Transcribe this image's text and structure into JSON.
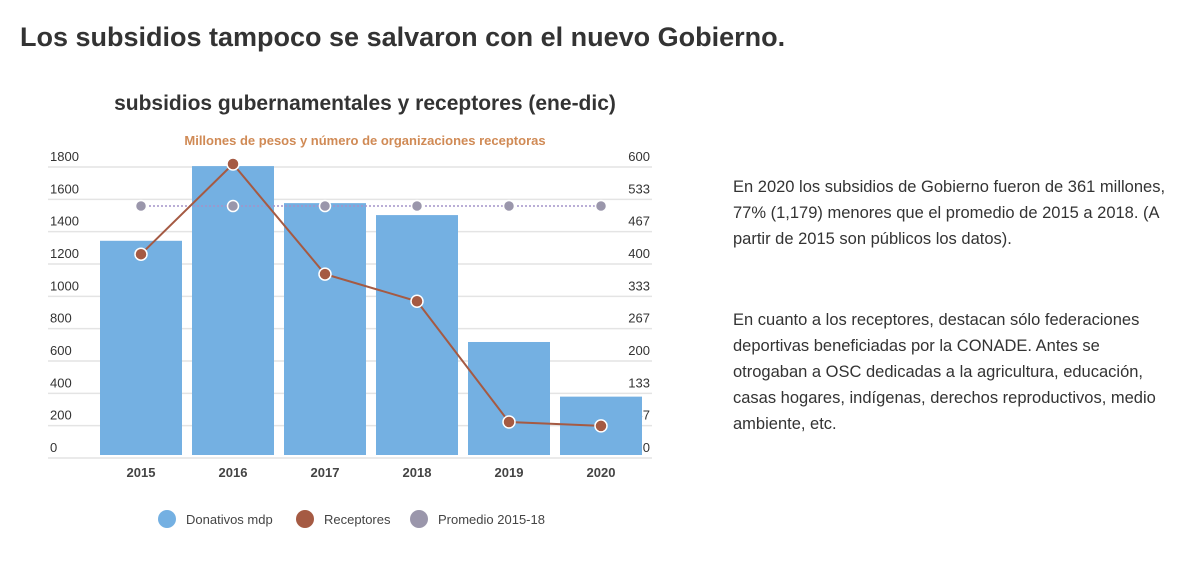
{
  "headline": "Los subsidios tampoco se salvaron con el nuevo Gobierno.",
  "paragraphs": [
    "En 2020 los subsidios de Gobierno fueron de  361 millones, 77% (1,179) menores que el promedio de 2015 a 2018. (A partir de 2015 son públicos los datos).",
    "En cuanto a los receptores, destacan sólo federaciones deportivas beneficiadas por la CONADE. Antes se otrogaban a OSC dedicadas a la agricultura, educación, casas hogares, indígenas, derechos reproductivos, medio ambiente, etc."
  ],
  "chart_data": {
    "type": "bar",
    "title": "subsidios gubernamentales y receptores (ene-dic)",
    "subtitle": "Millones de pesos y número de organizaciones receptoras",
    "categories": [
      "2015",
      "2016",
      "2017",
      "2018",
      "2019",
      "2020"
    ],
    "ylim": [
      0,
      1800
    ],
    "y_ticks": [
      "0",
      "200",
      "400",
      "600",
      "800",
      "1000",
      "1200",
      "1400",
      "1600",
      "1800"
    ],
    "y2lim": [
      0,
      600
    ],
    "y2_ticks": [
      "0",
      "67",
      "133",
      "200",
      "267",
      "333",
      "400",
      "467",
      "533",
      "600"
    ],
    "series": [
      {
        "name": "Donativos mdp",
        "kind": "bar",
        "axis": "left",
        "color": "#74b0e2",
        "values": [
          1325,
          1787,
          1558,
          1484,
          699,
          361
        ]
      },
      {
        "name": "Receptores",
        "kind": "line",
        "axis": "right",
        "color": "#a55a43",
        "values": [
          414,
          600,
          373,
          317,
          68,
          60
        ]
      },
      {
        "name": "Promedio 2015-18",
        "kind": "dotted-line",
        "axis": "left",
        "color": "#9a96ab",
        "values": [
          1540,
          1540,
          1540,
          1540,
          1540,
          1540
        ]
      }
    ],
    "legend_position": "bottom",
    "grid": true
  }
}
